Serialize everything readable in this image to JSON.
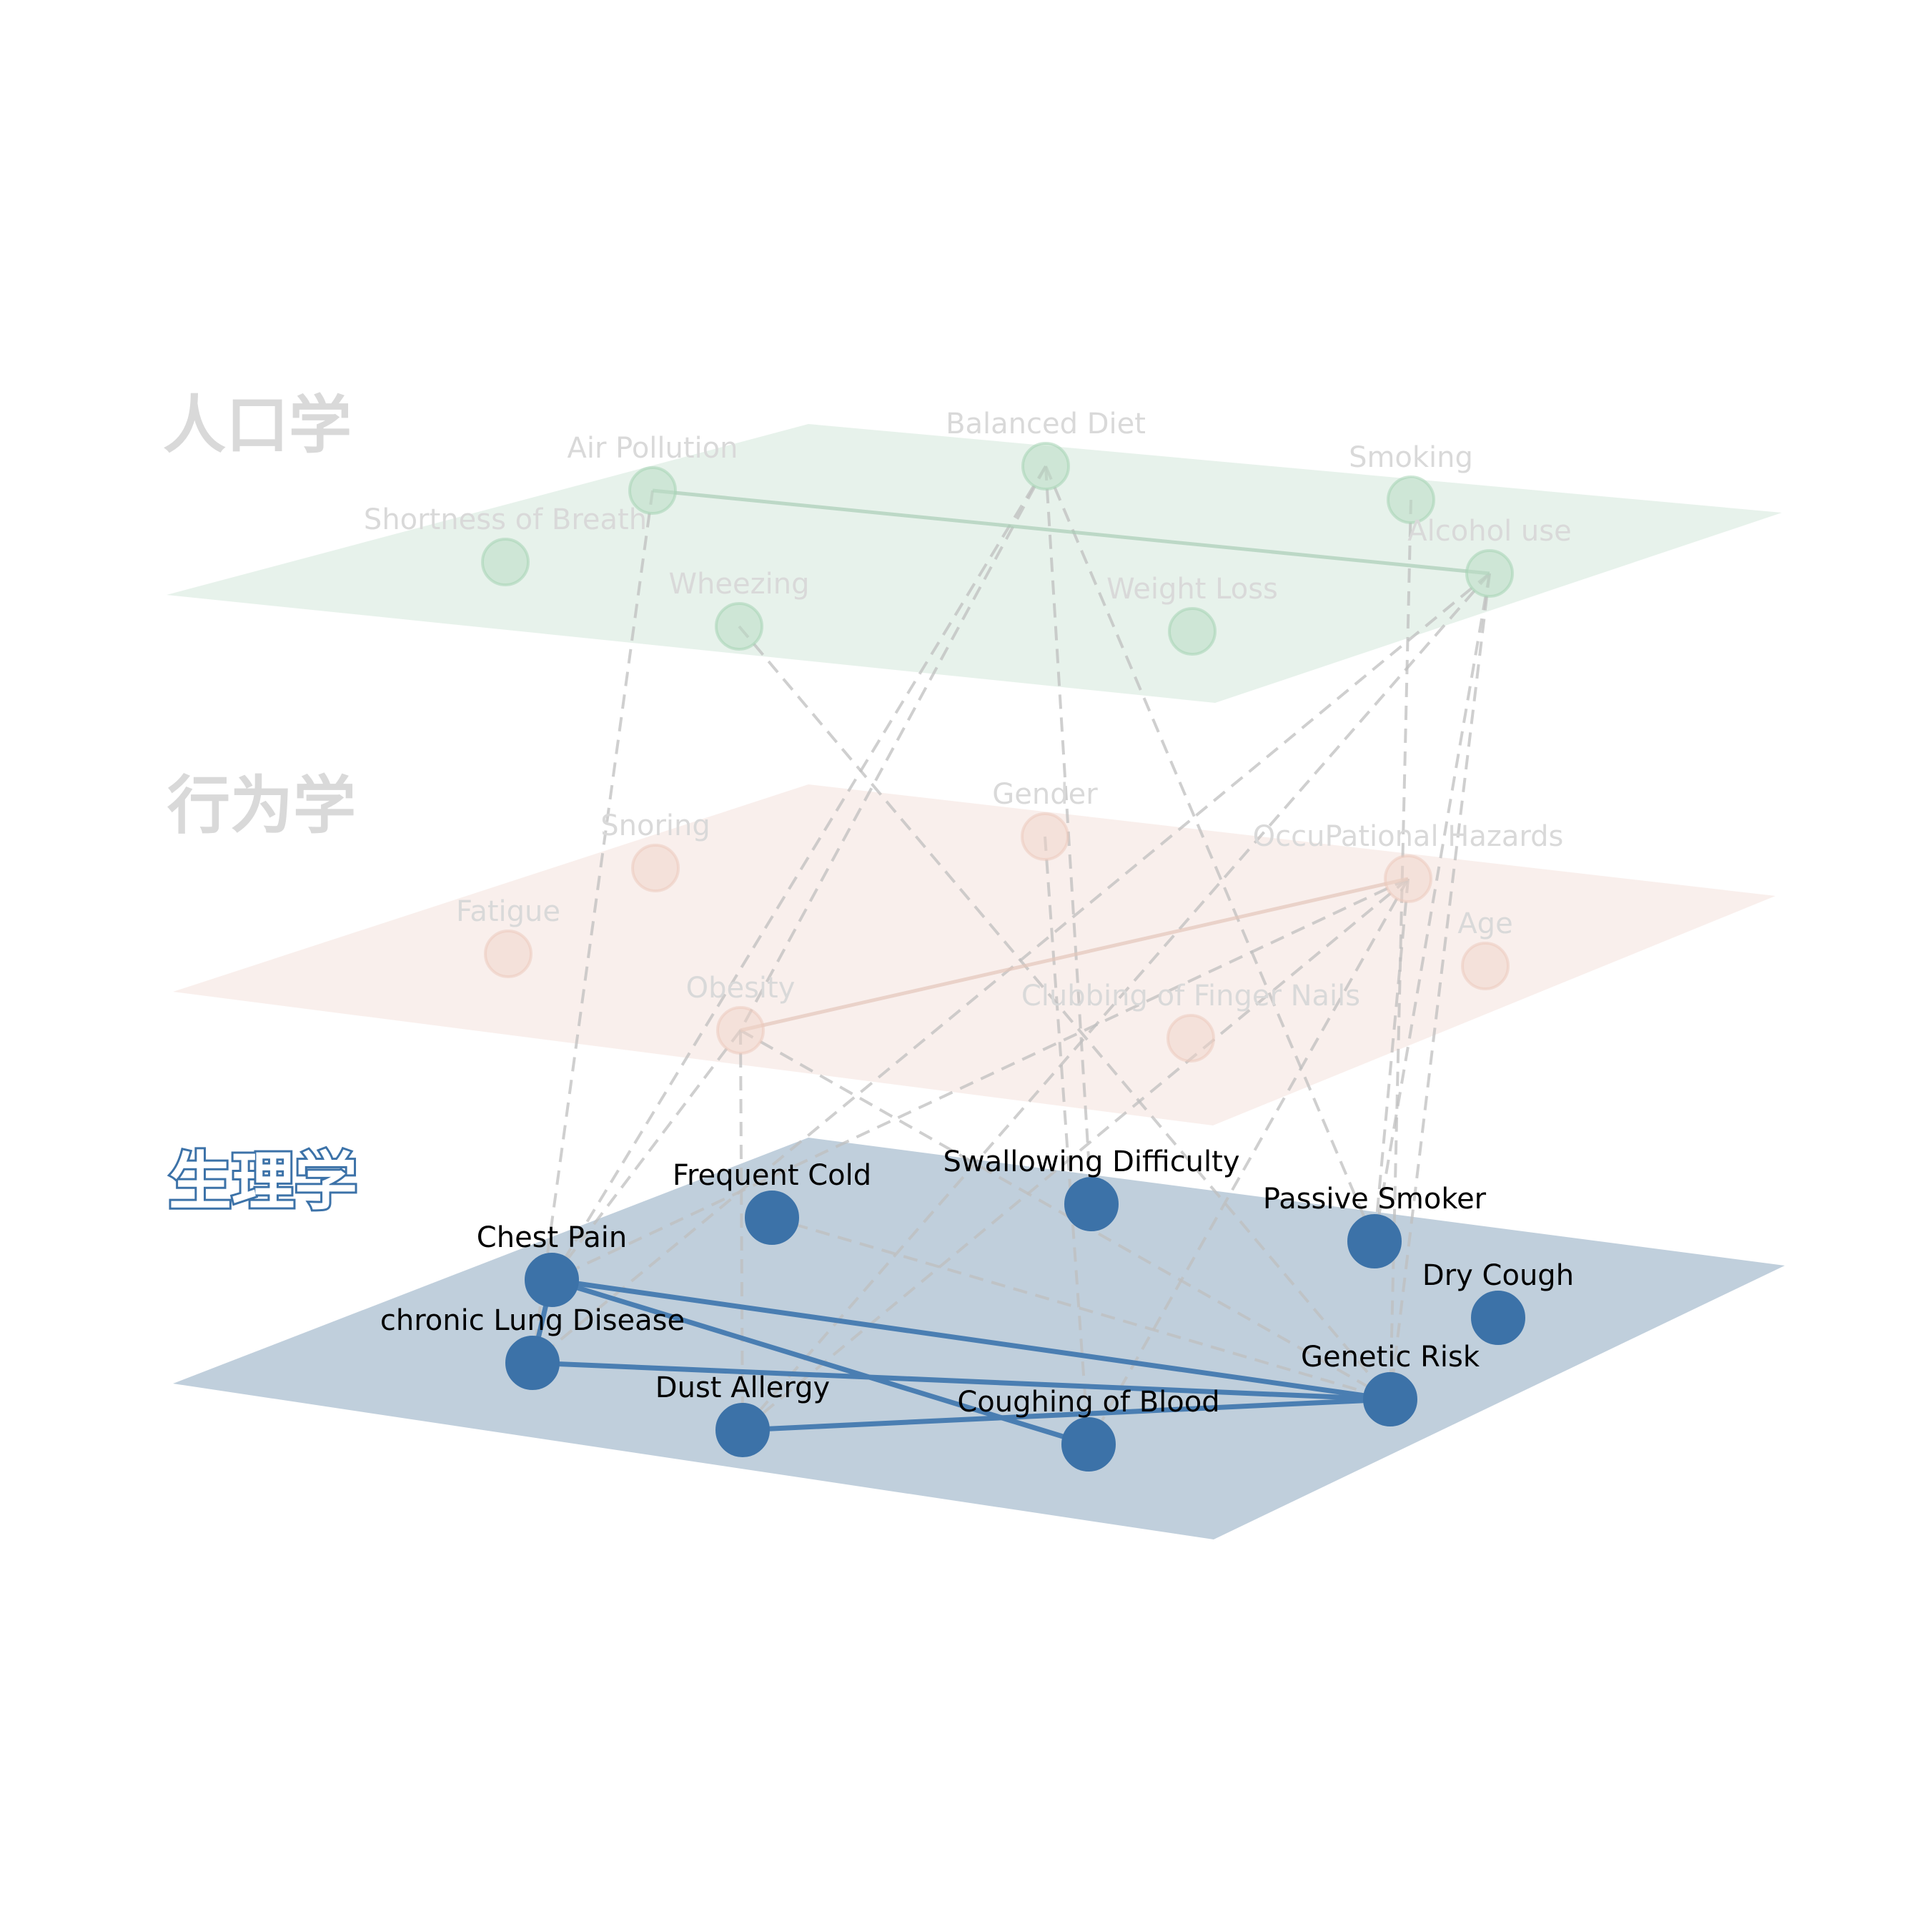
{
  "colors": {
    "top_plane": "#d7e9de",
    "top_node": "#b9dcc4",
    "mid_plane": "#f4e2dc",
    "mid_node": "#f0d3c8",
    "bottom_plane": "#c0cfdc",
    "bottom_node": "#3c72a8",
    "bottom_edge": "#4a7eb2",
    "faded_text": "#d9d9d9",
    "dashed_edge": "#bfbfbf"
  },
  "layers": [
    {
      "key": "top",
      "title": "人口学",
      "nodes": [
        {
          "id": "t_air",
          "label": "Air Pollution"
        },
        {
          "id": "t_diet",
          "label": "Balanced Diet"
        },
        {
          "id": "t_smoke",
          "label": "Smoking"
        },
        {
          "id": "t_alcohol",
          "label": "Alcohol use"
        },
        {
          "id": "t_breath",
          "label": "Shortness of Breath"
        },
        {
          "id": "t_wheeze",
          "label": "Wheezing"
        },
        {
          "id": "t_weight",
          "label": "Weight Loss"
        }
      ]
    },
    {
      "key": "mid",
      "title": "行为学",
      "nodes": [
        {
          "id": "m_snore",
          "label": "Snoring"
        },
        {
          "id": "m_gender",
          "label": "Gender"
        },
        {
          "id": "m_occu",
          "label": "OccuPational Hazards"
        },
        {
          "id": "m_fatigue",
          "label": "Fatigue"
        },
        {
          "id": "m_age",
          "label": "Age"
        },
        {
          "id": "m_obesity",
          "label": "Obesity"
        },
        {
          "id": "m_club",
          "label": "Clubbing of Finger Nails"
        }
      ]
    },
    {
      "key": "bottom",
      "title": "生理学",
      "nodes": [
        {
          "id": "b_cold",
          "label": "Frequent Cold"
        },
        {
          "id": "b_swallow",
          "label": "Swallowing Difficulty"
        },
        {
          "id": "b_passive",
          "label": "Passive Smoker"
        },
        {
          "id": "b_chest",
          "label": "Chest Pain"
        },
        {
          "id": "b_dry",
          "label": "Dry Cough"
        },
        {
          "id": "b_lung",
          "label": "chronic Lung Disease"
        },
        {
          "id": "b_genetic",
          "label": "Genetic Risk"
        },
        {
          "id": "b_dust",
          "label": "Dust Allergy"
        },
        {
          "id": "b_blood",
          "label": "Coughing of Blood"
        }
      ]
    }
  ],
  "intra_edges": [
    [
      "t_air",
      "t_alcohol"
    ],
    [
      "m_obesity",
      "m_occu"
    ],
    [
      "b_chest",
      "b_lung"
    ],
    [
      "b_chest",
      "b_genetic"
    ],
    [
      "b_chest",
      "b_blood"
    ],
    [
      "b_lung",
      "b_genetic"
    ],
    [
      "b_dust",
      "b_genetic"
    ]
  ],
  "inter_edges": [
    [
      "t_diet",
      "b_chest"
    ],
    [
      "t_diet",
      "b_swallow"
    ],
    [
      "t_diet",
      "b_passive"
    ],
    [
      "t_diet",
      "m_obesity"
    ],
    [
      "t_wheeze",
      "b_genetic"
    ],
    [
      "t_air",
      "b_lung"
    ],
    [
      "t_alcohol",
      "b_lung"
    ],
    [
      "t_alcohol",
      "b_dust"
    ],
    [
      "t_alcohol",
      "b_genetic"
    ],
    [
      "t_alcohol",
      "b_passive"
    ],
    [
      "t_smoke",
      "b_genetic"
    ],
    [
      "m_occu",
      "b_chest"
    ],
    [
      "m_occu",
      "b_dust"
    ],
    [
      "m_occu",
      "b_passive"
    ],
    [
      "m_occu",
      "b_blood"
    ],
    [
      "m_obesity",
      "b_dust"
    ],
    [
      "m_obesity",
      "b_chest"
    ],
    [
      "m_obesity",
      "b_genetic"
    ],
    [
      "m_gender",
      "b_blood"
    ],
    [
      "b_cold",
      "b_genetic"
    ]
  ]
}
